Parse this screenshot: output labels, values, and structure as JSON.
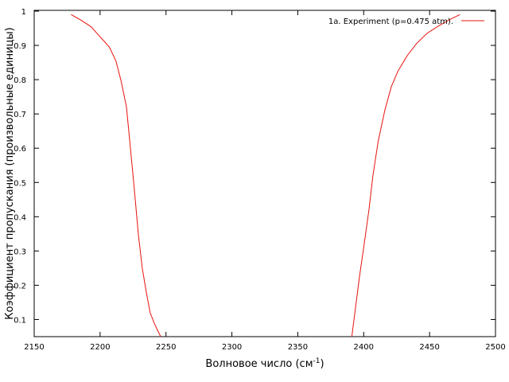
{
  "chart_data": {
    "type": "line",
    "title": "",
    "xlabel": "Волновое число (см",
    "xlabel_sup": "-1",
    "xlabel_suffix": ")",
    "ylabel": "Коэффициент пропускания (произвольные единицы)",
    "xlim": [
      2150,
      2500
    ],
    "ylim": [
      0.05,
      1
    ],
    "xticks": [
      "2150",
      "2200",
      "2250",
      "2300",
      "2350",
      "2400",
      "2450",
      "2500"
    ],
    "yticks": [
      "0.1",
      "0.2",
      "0.3",
      "0.4",
      "0.5",
      "0.6",
      "0.7",
      "0.8",
      "0.9",
      "1"
    ],
    "grid": false,
    "legend_position": "top-right",
    "series": [
      {
        "name": "1a. Experiment (p=0.475 atm).",
        "color": "#e8120c",
        "segments": [
          [
            [
              2178,
              0.99
            ],
            [
              2185,
              0.975
            ],
            [
              2193,
              0.955
            ],
            [
              2200,
              0.925
            ],
            [
              2207,
              0.895
            ],
            [
              2212,
              0.855
            ],
            [
              2216,
              0.795
            ],
            [
              2220,
              0.72
            ],
            [
              2223,
              0.6
            ],
            [
              2226,
              0.48
            ],
            [
              2229,
              0.35
            ],
            [
              2232,
              0.25
            ],
            [
              2235,
              0.18
            ],
            [
              2238,
              0.12
            ],
            [
              2241,
              0.09
            ],
            [
              2244,
              0.065
            ],
            [
              2246,
              0.05
            ]
          ],
          [
            [
              2391,
              0.05
            ],
            [
              2392,
              0.08
            ],
            [
              2394,
              0.14
            ],
            [
              2397,
              0.23
            ],
            [
              2400,
              0.31
            ],
            [
              2404,
              0.42
            ],
            [
              2407,
              0.52
            ],
            [
              2411,
              0.62
            ],
            [
              2416,
              0.71
            ],
            [
              2421,
              0.78
            ],
            [
              2426,
              0.825
            ],
            [
              2433,
              0.87
            ],
            [
              2440,
              0.905
            ],
            [
              2448,
              0.935
            ],
            [
              2456,
              0.955
            ],
            [
              2465,
              0.975
            ],
            [
              2473,
              0.99
            ]
          ]
        ]
      }
    ]
  }
}
